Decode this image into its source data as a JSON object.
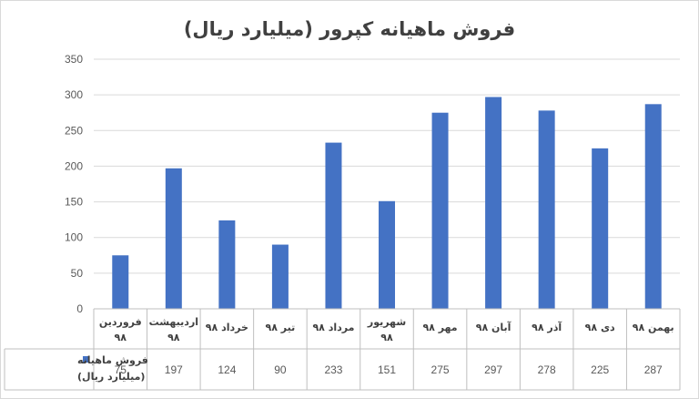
{
  "chart_data": {
    "type": "bar",
    "title": "فروش ماهیانه کپرور (میلیارد ریال)",
    "categories": [
      "فروردین ۹۸",
      "اردیبهشت ۹۸",
      "خرداد ۹۸",
      "تیر ۹۸",
      "مرداد ۹۸",
      "شهریور ۹۸",
      "مهر ۹۸",
      "آبان ۹۸",
      "آذر ۹۸",
      "دی ۹۸",
      "بهمن ۹۸"
    ],
    "series": [
      {
        "name": "فروش ماهیانه (میلیارد ریال)",
        "values": [
          75,
          197,
          124,
          90,
          233,
          151,
          275,
          297,
          278,
          225,
          287
        ]
      }
    ],
    "ylim": [
      0,
      350
    ],
    "yticks": [
      0,
      50,
      100,
      150,
      200,
      250,
      300,
      350
    ],
    "grid": true,
    "legend": "data-table-left",
    "data_table": true,
    "colors": {
      "bar": "#4472C4",
      "grid": "#d9d9d9",
      "axis": "#bfbfbf"
    }
  }
}
